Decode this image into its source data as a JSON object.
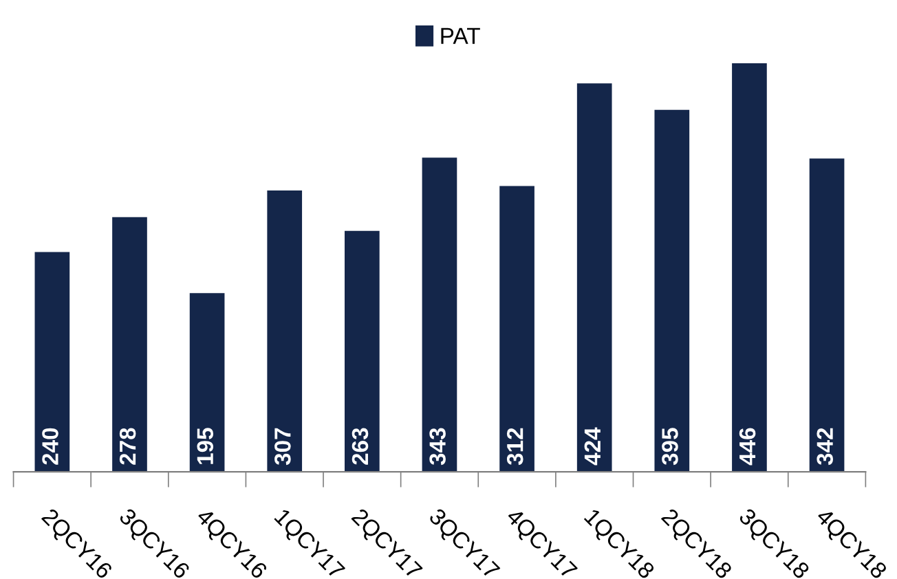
{
  "chart_data": {
    "type": "bar",
    "categories": [
      "2QCY16",
      "3QCY16",
      "4QCY16",
      "1QCY17",
      "2QCY17",
      "3QCY17",
      "4QCY17",
      "1QCY18",
      "2QCY18",
      "3QCY18",
      "4QCY18"
    ],
    "series": [
      {
        "name": "PAT",
        "color": "#14264a",
        "values": [
          240,
          278,
          195,
          307,
          263,
          343,
          312,
          424,
          395,
          446,
          342
        ]
      }
    ],
    "data_labels": true,
    "legend": "top",
    "grid": false
  }
}
